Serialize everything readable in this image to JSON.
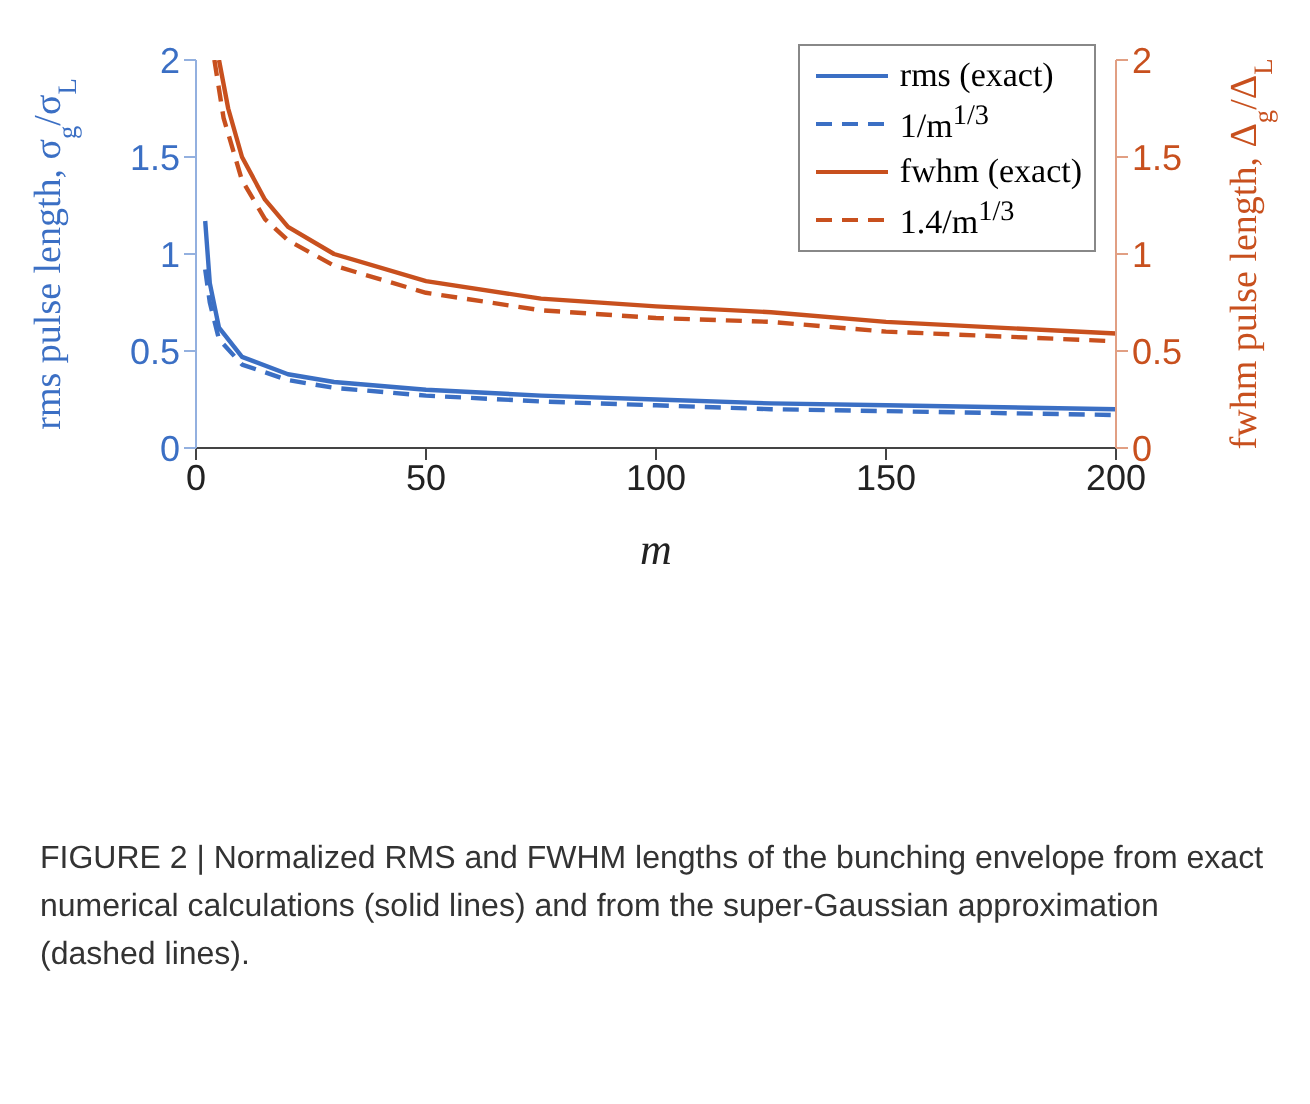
{
  "chart_data": {
    "type": "line",
    "xlabel": "m",
    "ylabel": "rms pulse length, σ$_{g}$/σ$_{L}$",
    "y2label": "fwhm pulse length, Δ$_{g}$/Δ$_{L}$",
    "xlim": [
      0,
      200
    ],
    "xticks": [
      0,
      50,
      100,
      150,
      200
    ],
    "ylim": [
      0,
      2
    ],
    "yticks": [
      0,
      0.5,
      1,
      1.5,
      2
    ],
    "y2lim": [
      0,
      2
    ],
    "y2ticks": [
      0,
      0.5,
      1,
      1.5,
      2
    ],
    "legend": "top right",
    "marker": "none",
    "series": [
      {
        "name": "rms (exact)",
        "color": "#3b6fc4",
        "line_style": "solid",
        "axis": "y",
        "x": [
          2,
          3,
          5,
          10,
          20,
          30,
          50,
          75,
          100,
          125,
          150,
          200
        ],
        "values": [
          1.17,
          0.85,
          0.62,
          0.47,
          0.38,
          0.34,
          0.3,
          0.27,
          0.25,
          0.23,
          0.22,
          0.2
        ]
      },
      {
        "name": "1/m$^{1/3}$",
        "color": "#3b6fc4",
        "line_style": "dashed",
        "axis": "y",
        "x": [
          2,
          3,
          5,
          10,
          20,
          30,
          50,
          75,
          100,
          125,
          150,
          200
        ],
        "values": [
          0.92,
          0.75,
          0.56,
          0.43,
          0.35,
          0.31,
          0.27,
          0.24,
          0.22,
          0.2,
          0.19,
          0.17
        ]
      },
      {
        "name": "fwhm (exact)",
        "color": "#c8501e",
        "line_style": "solid",
        "axis": "y2",
        "x": [
          5,
          7,
          10,
          15,
          20,
          30,
          50,
          75,
          100,
          125,
          150,
          200
        ],
        "values": [
          2,
          1.75,
          1.5,
          1.28,
          1.14,
          1,
          0.86,
          0.77,
          0.73,
          0.7,
          0.65,
          0.59
        ]
      },
      {
        "name": "1.4/m$^{1/3}$",
        "color": "#c8501e",
        "line_style": "dashed",
        "axis": "y2",
        "x": [
          4,
          6,
          10,
          15,
          20,
          30,
          50,
          75,
          100,
          125,
          150,
          200
        ],
        "values": [
          2,
          1.7,
          1.38,
          1.18,
          1.07,
          0.94,
          0.8,
          0.71,
          0.67,
          0.65,
          0.6,
          0.55
        ]
      }
    ],
    "annotations": [
      "FIGURE 2 | Normalized RMS and FWHM lengths of the bunching envelope from exact numerical calculations (solid lines) and from the super-Gaussian approximation (dashed lines)."
    ]
  }
}
